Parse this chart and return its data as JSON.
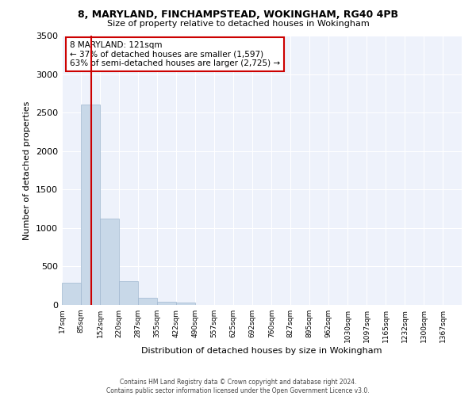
{
  "title": "8, MARYLAND, FINCHAMPSTEAD, WOKINGHAM, RG40 4PB",
  "subtitle": "Size of property relative to detached houses in Wokingham",
  "xlabel": "Distribution of detached houses by size in Wokingham",
  "ylabel": "Number of detached properties",
  "bar_color": "#c8d8e8",
  "bar_edge_color": "#a0b8d0",
  "background_color": "#eef2fb",
  "grid_color": "#ffffff",
  "annotation_text": "8 MARYLAND: 121sqm\n← 37% of detached houses are smaller (1,597)\n63% of semi-detached houses are larger (2,725) →",
  "vline_x": 121,
  "vline_color": "#cc0000",
  "property_size": 121,
  "tick_labels": [
    "17sqm",
    "85sqm",
    "152sqm",
    "220sqm",
    "287sqm",
    "355sqm",
    "422sqm",
    "490sqm",
    "557sqm",
    "625sqm",
    "692sqm",
    "760sqm",
    "827sqm",
    "895sqm",
    "962sqm",
    "1030sqm",
    "1097sqm",
    "1165sqm",
    "1232sqm",
    "1300sqm",
    "1367sqm"
  ],
  "values": [
    290,
    2600,
    1120,
    305,
    90,
    45,
    30,
    0,
    0,
    0,
    0,
    0,
    0,
    0,
    0,
    0,
    0,
    0,
    0,
    0,
    0
  ],
  "bin_edges": [
    17,
    85,
    152,
    220,
    287,
    355,
    422,
    490,
    557,
    625,
    692,
    760,
    827,
    895,
    962,
    1030,
    1097,
    1165,
    1232,
    1300,
    1367,
    1434
  ],
  "ylim": [
    0,
    3500
  ],
  "yticks": [
    0,
    500,
    1000,
    1500,
    2000,
    2500,
    3000,
    3500
  ],
  "footnote": "Contains HM Land Registry data © Crown copyright and database right 2024.\nContains public sector information licensed under the Open Government Licence v3.0."
}
